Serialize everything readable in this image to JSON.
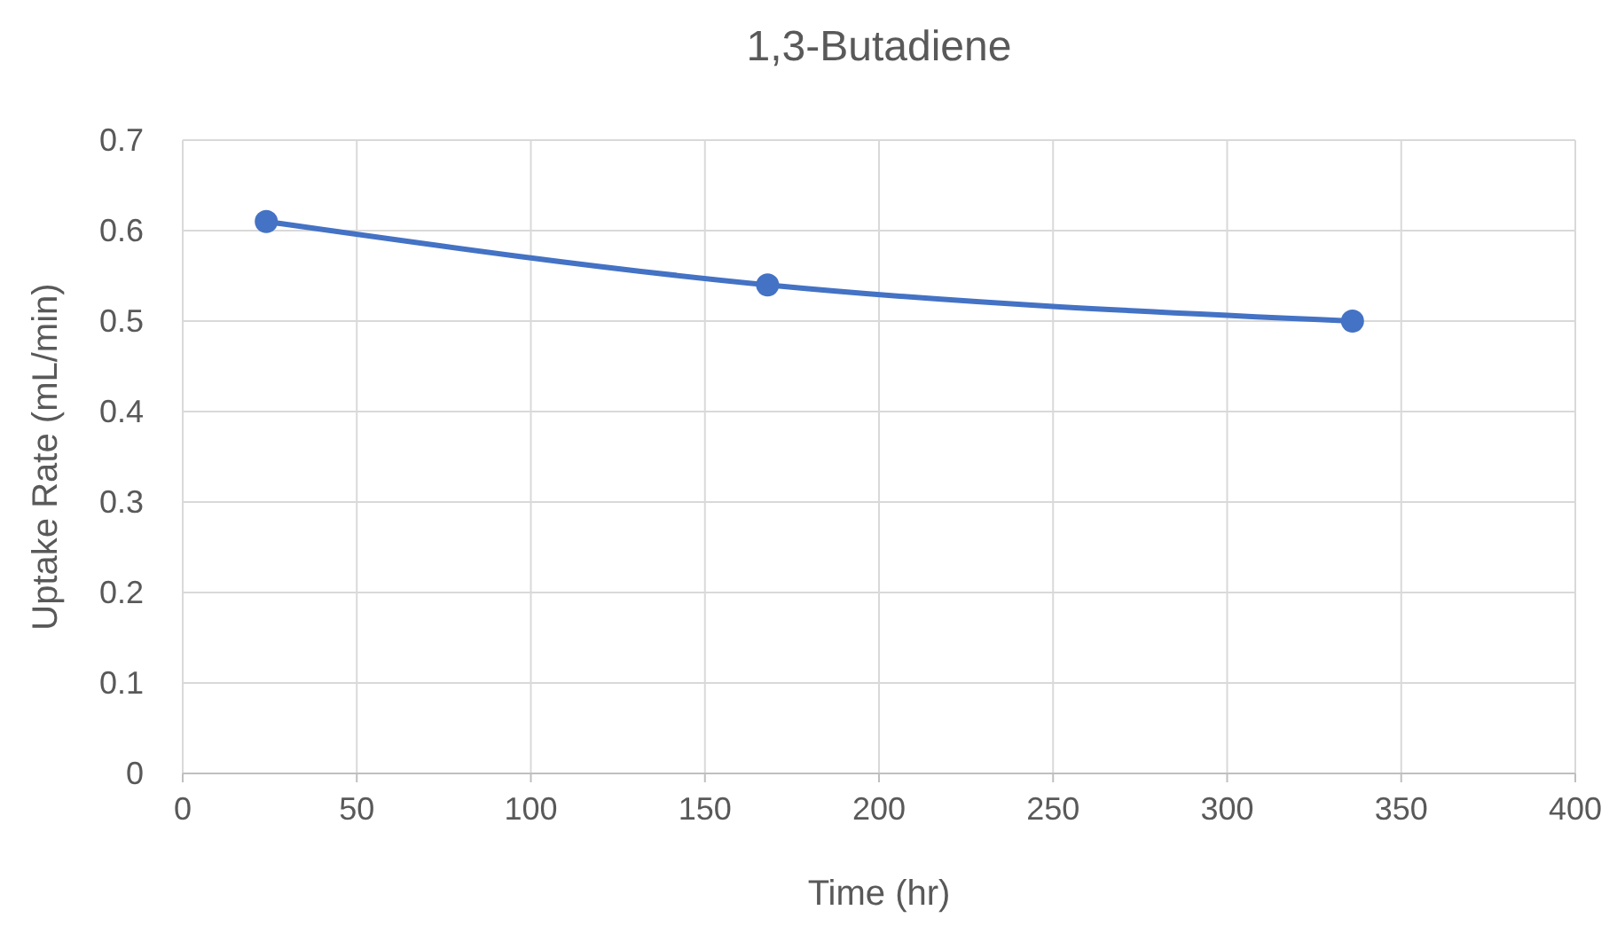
{
  "chart_data": {
    "type": "line",
    "title": "1,3-Butadiene",
    "xlabel": "Time (hr)",
    "ylabel": "Uptake Rate (mL/min)",
    "x": [
      24,
      168,
      336
    ],
    "series": [
      {
        "color": "#4472c4",
        "values": [
          0.61,
          0.54,
          0.5
        ]
      }
    ],
    "xlim": [
      0,
      400
    ],
    "xticks": [
      0,
      50,
      100,
      150,
      200,
      250,
      300,
      350,
      400
    ],
    "ylim": [
      0,
      0.7
    ],
    "yticks": [
      0,
      0.1,
      0.2,
      0.3,
      0.4,
      0.5,
      0.6,
      0.7
    ],
    "grid": true,
    "marker": "circle",
    "line_style": "solid"
  }
}
